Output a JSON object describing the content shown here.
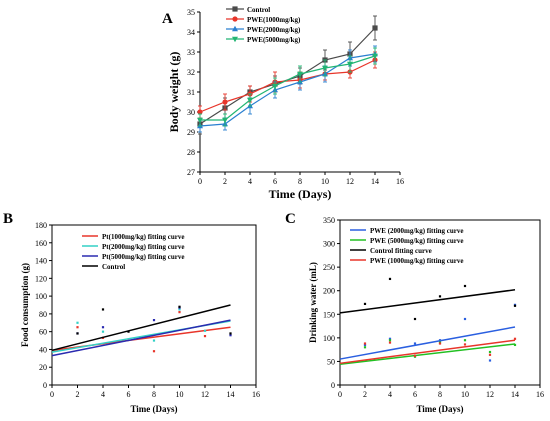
{
  "chart_data": [
    {
      "panel": "A",
      "type": "line",
      "xlabel": "Time (Days)",
      "ylabel": "Body weight (g)",
      "xlim": [
        0,
        16
      ],
      "ylim": [
        27,
        35
      ],
      "xticks": [
        "0",
        "2",
        "4",
        "6",
        "8",
        "10",
        "12",
        "14",
        "16"
      ],
      "yticks": [
        "27",
        "28",
        "29",
        "30",
        "31",
        "32",
        "33",
        "34",
        "35"
      ],
      "legend_position": "top-left",
      "error_bars": true,
      "series": [
        {
          "name": "Control",
          "color": "#4a4a4a",
          "marker": "square",
          "x": [
            0,
            2,
            4,
            6,
            8,
            10,
            12,
            14
          ],
          "y": [
            29.4,
            30.2,
            31.0,
            31.4,
            31.8,
            32.6,
            32.9,
            34.2
          ],
          "err": [
            0.5,
            0.5,
            0.3,
            0.4,
            0.4,
            0.5,
            0.6,
            0.6
          ]
        },
        {
          "name": "PWE(1000mg/kg)",
          "color": "#e8352a",
          "marker": "circle",
          "x": [
            0,
            2,
            4,
            6,
            8,
            10,
            12,
            14
          ],
          "y": [
            30.0,
            30.5,
            30.9,
            31.5,
            31.6,
            31.9,
            32.0,
            32.6
          ],
          "err": [
            0.3,
            0.4,
            0.4,
            0.5,
            0.4,
            0.3,
            0.3,
            0.4
          ]
        },
        {
          "name": "PWE(2000mg/kg)",
          "color": "#2a7fd0",
          "marker": "triangle-up",
          "x": [
            0,
            2,
            4,
            6,
            8,
            10,
            12,
            14
          ],
          "y": [
            29.3,
            29.4,
            30.3,
            31.1,
            31.5,
            31.9,
            32.7,
            32.9
          ],
          "err": [
            0.3,
            0.3,
            0.4,
            0.4,
            0.4,
            0.4,
            0.4,
            0.4
          ]
        },
        {
          "name": "PWE(5000mg/kg)",
          "color": "#22b573",
          "marker": "triangle-down",
          "x": [
            0,
            2,
            4,
            6,
            8,
            10,
            12,
            14
          ],
          "y": [
            29.6,
            29.6,
            30.6,
            31.3,
            31.9,
            32.2,
            32.4,
            32.8
          ],
          "err": [
            0.3,
            0.3,
            0.3,
            0.4,
            0.4,
            0.4,
            0.4,
            0.4
          ]
        }
      ]
    },
    {
      "panel": "B",
      "type": "scatter",
      "xlabel": "Time (Days)",
      "ylabel": "Food consumption (g)",
      "xlim": [
        0,
        16
      ],
      "ylim": [
        0,
        180
      ],
      "xticks": [
        "0",
        "2",
        "4",
        "6",
        "8",
        "10",
        "12",
        "14",
        "16"
      ],
      "yticks": [
        "0",
        "20",
        "40",
        "60",
        "80",
        "100",
        "120",
        "140",
        "160",
        "180"
      ],
      "legend_position": "top-left",
      "series": [
        {
          "name": "Pt(1000mg/kg) fitting curve",
          "color": "#e8352a",
          "points": [
            [
              2,
              65
            ],
            [
              4,
              53
            ],
            [
              8,
              38
            ],
            [
              10,
              82
            ],
            [
              12,
              55
            ]
          ],
          "fit": [
            [
              0,
              39
            ],
            [
              14,
              65
            ]
          ]
        },
        {
          "name": "Pt(2000mg/kg) fitting curve",
          "color": "#33d1c6",
          "points": [
            [
              2,
              70
            ],
            [
              4,
              60
            ],
            [
              8,
              50
            ],
            [
              10,
              85
            ],
            [
              12,
              61
            ]
          ],
          "fit": [
            [
              0,
              37
            ],
            [
              14,
              72
            ]
          ]
        },
        {
          "name": "Pt(5000mg/kg) fitting curve",
          "color": "#2a2ab0",
          "points": [
            [
              2,
              58
            ],
            [
              4,
              65
            ],
            [
              8,
              73
            ],
            [
              10,
              87
            ],
            [
              14,
              56
            ]
          ],
          "fit": [
            [
              0,
              33
            ],
            [
              14,
              73
            ]
          ]
        },
        {
          "name": "Control",
          "color": "#000000",
          "points": [
            [
              2,
              58
            ],
            [
              4,
              85
            ],
            [
              6,
              60
            ],
            [
              10,
              88
            ],
            [
              14,
              58
            ]
          ],
          "fit": [
            [
              0,
              39
            ],
            [
              14,
              90
            ]
          ]
        }
      ]
    },
    {
      "panel": "C",
      "type": "scatter",
      "xlabel": "Time (Days)",
      "ylabel": "Drinking water (mL)",
      "xlim": [
        0,
        16
      ],
      "ylim": [
        0,
        350
      ],
      "xticks": [
        "0",
        "2",
        "4",
        "6",
        "8",
        "10",
        "12",
        "14",
        "16"
      ],
      "yticks": [
        "0",
        "50",
        "100",
        "150",
        "200",
        "250",
        "300",
        "350"
      ],
      "legend_position": "top-left",
      "series": [
        {
          "name": "PWE (2000mg/kg) fitting curve",
          "color": "#2a5fe0",
          "points": [
            [
              2,
              85
            ],
            [
              4,
              98
            ],
            [
              6,
              88
            ],
            [
              8,
              95
            ],
            [
              10,
              140
            ],
            [
              12,
              52
            ],
            [
              14,
              170
            ]
          ],
          "fit": [
            [
              0,
              55
            ],
            [
              14,
              123
            ]
          ]
        },
        {
          "name": "PWE (5000mg/kg) fitting curve",
          "color": "#22c022",
          "points": [
            [
              2,
              80
            ],
            [
              4,
              95
            ],
            [
              6,
              60
            ],
            [
              8,
              90
            ],
            [
              10,
              95
            ],
            [
              12,
              70
            ],
            [
              14,
              85
            ]
          ],
          "fit": [
            [
              0,
              44
            ],
            [
              14,
              87
            ]
          ]
        },
        {
          "name": "Control fitting curve",
          "color": "#000000",
          "points": [
            [
              2,
              172
            ],
            [
              4,
              225
            ],
            [
              6,
              140
            ],
            [
              8,
              188
            ],
            [
              10,
              210
            ],
            [
              14,
              168
            ]
          ],
          "fit": [
            [
              0,
              153
            ],
            [
              14,
              202
            ]
          ]
        },
        {
          "name": "PWE (1000mg/kg) fitting curve",
          "color": "#e8352a",
          "points": [
            [
              2,
              88
            ],
            [
              4,
              90
            ],
            [
              6,
              62
            ],
            [
              8,
              88
            ],
            [
              10,
              86
            ],
            [
              12,
              64
            ],
            [
              14,
              98
            ]
          ],
          "fit": [
            [
              0,
              46
            ],
            [
              14,
              95
            ]
          ]
        }
      ]
    }
  ]
}
